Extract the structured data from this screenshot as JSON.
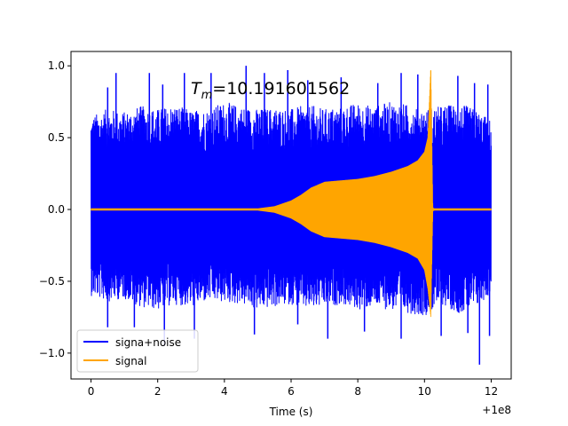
{
  "chart_data": {
    "type": "line",
    "title": "",
    "xlabel": "Time (s)",
    "ylabel": "",
    "x_offset_label": "+1e8",
    "annotation": {
      "symbol": "T",
      "subscript": "m",
      "value_text": "=10.191601562",
      "x": 3.0,
      "y": 0.8
    },
    "xlim": [
      -0.6,
      12.6
    ],
    "ylim": [
      -1.18,
      1.1
    ],
    "x_ticks": [
      {
        "value": 0,
        "label": "0"
      },
      {
        "value": 2,
        "label": "2"
      },
      {
        "value": 4,
        "label": "4"
      },
      {
        "value": 6,
        "label": "6"
      },
      {
        "value": 8,
        "label": "8"
      },
      {
        "value": 10,
        "label": "10"
      },
      {
        "value": 12,
        "label": "12"
      }
    ],
    "y_ticks": [
      {
        "value": 1.0,
        "label": "1.0"
      },
      {
        "value": 0.5,
        "label": "0.5"
      },
      {
        "value": 0.0,
        "label": "0.0"
      },
      {
        "value": -0.5,
        "label": "−0.5"
      },
      {
        "value": -1.0,
        "label": "−1.0"
      }
    ],
    "grid": false,
    "legend_position": "lower-left",
    "series": [
      {
        "name": "signa+noise",
        "color": "#0000ff",
        "x_range": [
          0,
          12
        ],
        "envelope_x": [
          0,
          0.5,
          1,
          1.5,
          2,
          2.5,
          3,
          3.5,
          4,
          4.5,
          5,
          5.5,
          6,
          6.5,
          7,
          7.5,
          8,
          8.5,
          9,
          9.5,
          10,
          10.5,
          11,
          11.5,
          12
        ],
        "envelope_upper": [
          0.65,
          0.7,
          0.68,
          0.72,
          0.7,
          0.73,
          0.69,
          0.7,
          0.75,
          0.72,
          0.7,
          0.71,
          0.7,
          0.73,
          0.7,
          0.72,
          0.74,
          0.72,
          0.75,
          0.73,
          0.7,
          0.72,
          0.74,
          0.7,
          0.62
        ],
        "envelope_lower": [
          -0.6,
          -0.64,
          -0.62,
          -0.68,
          -0.7,
          -0.66,
          -0.68,
          -0.64,
          -0.65,
          -0.66,
          -0.7,
          -0.68,
          -0.66,
          -0.7,
          -0.68,
          -0.66,
          -0.7,
          -0.68,
          -0.7,
          -0.72,
          -0.74,
          -0.66,
          -0.72,
          -0.7,
          -0.58
        ],
        "spikes": [
          [
            0.5,
            0.85
          ],
          [
            0.75,
            0.95
          ],
          [
            1.75,
            0.95
          ],
          [
            2.15,
            0.87
          ],
          [
            2.8,
            0.95
          ],
          [
            3.6,
            0.95
          ],
          [
            4.65,
            1.0
          ],
          [
            5.2,
            0.95
          ],
          [
            5.9,
            0.97
          ],
          [
            6.5,
            0.9
          ],
          [
            7.5,
            0.92
          ],
          [
            8.6,
            0.88
          ],
          [
            9.3,
            0.95
          ],
          [
            9.8,
            0.94
          ],
          [
            11.0,
            0.93
          ],
          [
            11.5,
            0.88
          ],
          [
            11.9,
            0.87
          ],
          [
            0.5,
            -0.82
          ],
          [
            1.3,
            -0.82
          ],
          [
            2.2,
            -0.95
          ],
          [
            3.1,
            -0.9
          ],
          [
            4.9,
            -0.87
          ],
          [
            6.2,
            -0.8
          ],
          [
            7.1,
            -0.9
          ],
          [
            8.2,
            -0.85
          ],
          [
            9.3,
            -0.9
          ],
          [
            10.5,
            -0.88
          ],
          [
            11.3,
            -0.86
          ],
          [
            11.65,
            -1.08
          ],
          [
            11.95,
            -0.88
          ]
        ]
      },
      {
        "name": "signal",
        "color": "#ffa500",
        "x_range": [
          0,
          12
        ],
        "envelope_x": [
          0,
          5,
          5.5,
          6,
          6.3,
          6.6,
          7,
          7.5,
          8,
          8.5,
          9,
          9.5,
          9.8,
          10.0,
          10.1,
          10.19,
          10.25,
          10.3,
          12
        ],
        "envelope_upper": [
          0.005,
          0.005,
          0.02,
          0.06,
          0.1,
          0.15,
          0.19,
          0.2,
          0.21,
          0.23,
          0.26,
          0.3,
          0.34,
          0.4,
          0.5,
          1.0,
          0.01,
          0.005,
          0.005
        ],
        "envelope_lower": [
          -0.005,
          -0.005,
          -0.02,
          -0.06,
          -0.1,
          -0.15,
          -0.19,
          -0.2,
          -0.21,
          -0.23,
          -0.26,
          -0.3,
          -0.34,
          -0.42,
          -0.55,
          -0.75,
          -0.01,
          -0.005,
          -0.005
        ]
      }
    ]
  }
}
